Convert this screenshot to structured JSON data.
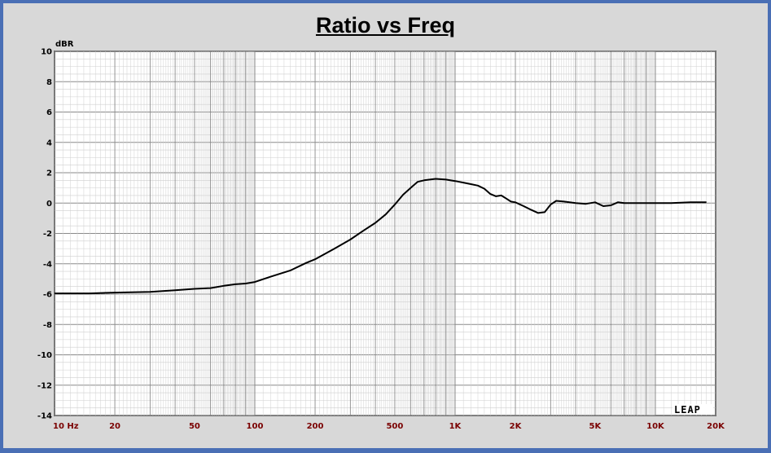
{
  "chart_data": {
    "type": "line",
    "title": "Ratio vs Freq",
    "ylabel": "dBR",
    "xlabel": "",
    "xscale": "log",
    "xlim": [
      10,
      20000
    ],
    "ylim": [
      -14,
      10
    ],
    "grid": true,
    "yticks": [
      {
        "value": 10,
        "label": "10"
      },
      {
        "value": 8,
        "label": "8"
      },
      {
        "value": 6,
        "label": "6"
      },
      {
        "value": 4,
        "label": "4"
      },
      {
        "value": 2,
        "label": "2"
      },
      {
        "value": 0,
        "label": "0"
      },
      {
        "value": -2,
        "label": "-2"
      },
      {
        "value": -4,
        "label": "-4"
      },
      {
        "value": -6,
        "label": "-6"
      },
      {
        "value": -8,
        "label": "-8"
      },
      {
        "value": -10,
        "label": "-10"
      },
      {
        "value": -12,
        "label": "-12"
      },
      {
        "value": -14,
        "label": "-14"
      }
    ],
    "xticks": [
      {
        "value": 10,
        "label": "10 Hz"
      },
      {
        "value": 20,
        "label": "20"
      },
      {
        "value": 50,
        "label": "50"
      },
      {
        "value": 100,
        "label": "100"
      },
      {
        "value": 200,
        "label": "200"
      },
      {
        "value": 500,
        "label": "500"
      },
      {
        "value": 1000,
        "label": "1K"
      },
      {
        "value": 2000,
        "label": "2K"
      },
      {
        "value": 5000,
        "label": "5K"
      },
      {
        "value": 10000,
        "label": "10K"
      },
      {
        "value": 20000,
        "label": "20K"
      }
    ],
    "series": [
      {
        "color": "#000000",
        "x": [
          10,
          15,
          20,
          30,
          40,
          50,
          60,
          70,
          80,
          90,
          100,
          120,
          150,
          180,
          200,
          250,
          300,
          350,
          400,
          450,
          500,
          550,
          600,
          650,
          700,
          800,
          900,
          1000,
          1100,
          1200,
          1300,
          1400,
          1500,
          1600,
          1700,
          1800,
          1900,
          2000,
          2200,
          2400,
          2600,
          2800,
          3000,
          3200,
          3500,
          4000,
          4500,
          5000,
          5500,
          6000,
          6500,
          7000,
          8000,
          10000,
          12000,
          15000,
          18000
        ],
        "y": [
          -5.95,
          -5.95,
          -5.9,
          -5.85,
          -5.75,
          -5.65,
          -5.6,
          -5.45,
          -5.35,
          -5.3,
          -5.2,
          -4.85,
          -4.45,
          -3.95,
          -3.7,
          -3.0,
          -2.4,
          -1.8,
          -1.3,
          -0.75,
          -0.1,
          0.55,
          1.0,
          1.4,
          1.5,
          1.6,
          1.55,
          1.45,
          1.35,
          1.25,
          1.15,
          0.95,
          0.6,
          0.45,
          0.5,
          0.3,
          0.1,
          0.05,
          -0.2,
          -0.45,
          -0.65,
          -0.6,
          -0.1,
          0.15,
          0.1,
          0.0,
          -0.05,
          0.05,
          -0.2,
          -0.15,
          0.05,
          0.0,
          0.0,
          0.0,
          0.0,
          0.05,
          0.05
        ]
      }
    ]
  },
  "logo_text": "LEAP"
}
